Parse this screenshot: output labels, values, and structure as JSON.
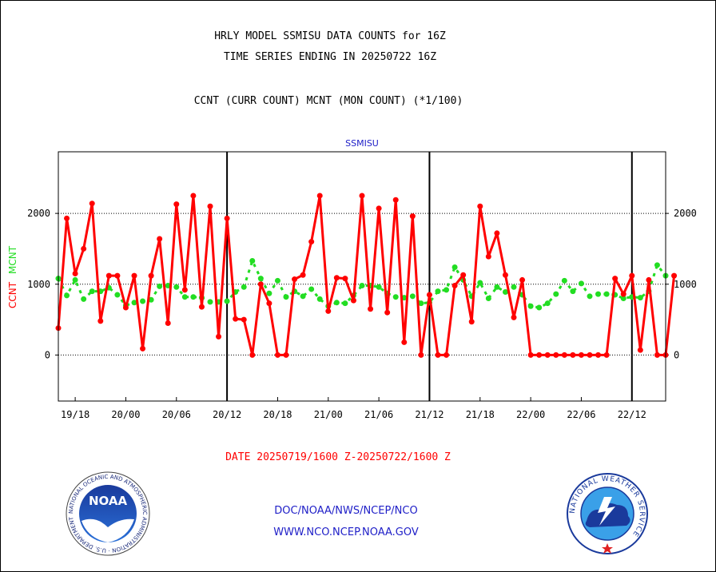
{
  "header": {
    "title_line1": "HRLY MODEL SSMISU DATA COUNTS for 16Z",
    "title_line2": "TIME SERIES ENDING IN 20250722 16Z",
    "subtitle": "CCNT (CURR COUNT) MCNT (MON COUNT) (*1/100)"
  },
  "chart_data": {
    "type": "line",
    "title": "SSMISU",
    "ylabel_ccnt": "CCNT",
    "ylabel_mcnt": "MCNT",
    "xlabel": "DATE 20250719/1600 Z-20250722/1600 Z",
    "x_tick_labels": [
      "19/18",
      "20/00",
      "20/06",
      "20/12",
      "20/18",
      "21/00",
      "21/06",
      "21/12",
      "21/18",
      "22/00",
      "22/06",
      "22/12"
    ],
    "x_tick_hours": [
      2,
      8,
      14,
      20,
      26,
      32,
      38,
      44,
      50,
      56,
      62,
      68
    ],
    "day_boundary_hours": [
      20,
      44,
      68
    ],
    "y_ticks": [
      0,
      1000,
      2000
    ],
    "ylim": [
      -650,
      2870
    ],
    "xlim": [
      0,
      72
    ],
    "grid": true,
    "series": [
      {
        "name": "CCNT",
        "color": "#ff0000",
        "values": [
          380,
          1930,
          1150,
          1500,
          2140,
          480,
          1120,
          1120,
          670,
          1120,
          90,
          1120,
          1640,
          450,
          2130,
          920,
          2250,
          680,
          2100,
          260,
          1930,
          510,
          500,
          0,
          1000,
          730,
          0,
          0,
          1070,
          1130,
          1600,
          2250,
          620,
          1090,
          1080,
          770,
          2250,
          650,
          2070,
          600,
          2190,
          180,
          1960,
          0,
          850,
          0,
          0,
          980,
          1130,
          470,
          2100,
          1390,
          1720,
          1130,
          530,
          1060,
          0,
          0,
          0,
          0,
          0,
          0,
          0,
          0,
          0,
          0,
          1080,
          860,
          1120,
          70,
          1060,
          0,
          0,
          1120
        ]
      },
      {
        "name": "MCNT",
        "color": "#22dd22",
        "values": [
          1080,
          840,
          1060,
          790,
          900,
          900,
          950,
          850,
          700,
          740,
          760,
          780,
          970,
          980,
          960,
          820,
          820,
          810,
          750,
          750,
          760,
          890,
          960,
          1330,
          1080,
          870,
          1050,
          820,
          900,
          830,
          930,
          790,
          690,
          740,
          730,
          840,
          980,
          980,
          960,
          870,
          820,
          810,
          830,
          730,
          740,
          900,
          920,
          1240,
          1060,
          830,
          1020,
          800,
          960,
          890,
          960,
          850,
          690,
          670,
          730,
          860,
          1050,
          900,
          1010,
          830,
          860,
          860,
          850,
          800,
          820,
          810,
          900,
          1270,
          1120
        ]
      }
    ]
  },
  "footer": {
    "date_range": "DATE 20250719/1600 Z-20250722/1600 Z",
    "credit_line1": "DOC/NOAA/NWS/NCEP/NCO",
    "credit_line2": "WWW.NCO.NCEP.NOAA.GOV"
  },
  "logos": {
    "noaa_text": "NOAA",
    "noaa_ring_text": "NATIONAL OCEANIC AND ATMOSPHERIC ADMINISTRATION · U.S. DEPARTMENT OF COMMERCE",
    "nws_ring_text": "NATIONAL WEATHER SERVICE"
  }
}
